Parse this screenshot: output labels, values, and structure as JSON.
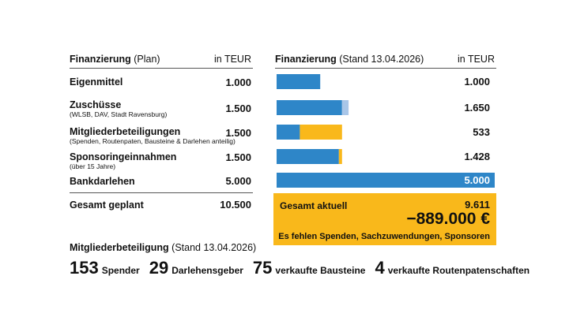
{
  "plan": {
    "title_bold": "Finanzierung",
    "title_rest": " (Plan)",
    "unit": "in TEUR",
    "rows": [
      {
        "label": "Eigenmittel",
        "sub": "",
        "value": "1.000"
      },
      {
        "label": "Zuschüsse",
        "sub": "(WLSB, DAV, Stadt Ravensburg)",
        "value": "1.500"
      },
      {
        "label": "Mitgliederbeteiligungen",
        "sub": "(Spenden, Routenpaten, Bausteine & Darlehen anteilig)",
        "value": "1.500"
      },
      {
        "label": "Sponsoringeinnahmen",
        "sub": "(über 15 Jahre)",
        "value": "1.500"
      },
      {
        "label": "Bankdarlehen",
        "sub": "",
        "value": "5.000"
      }
    ],
    "total_label": "Gesamt geplant",
    "total_value": "10.500"
  },
  "current": {
    "title_bold": "Finanzierung",
    "title_rest": " (Stand 13.04.2026)",
    "unit": "in TEUR",
    "total_label": "Gesamt aktuell",
    "total_value": "9.611",
    "gap_value": "−889.000 €",
    "gap_note": "Es fehlen Spenden, Sachzuwendungen, Sponsoren"
  },
  "chart_data": {
    "type": "bar",
    "orientation": "horizontal",
    "stacked": true,
    "categories": [
      "Eigenmittel",
      "Zuschüsse",
      "Mitgliederbeteiligungen",
      "Sponsoringeinnahmen",
      "Bankdarlehen"
    ],
    "xlim": [
      0,
      5000
    ],
    "series": [
      {
        "values": [
          1000,
          1500,
          533,
          1428,
          5000
        ],
        "color": "#2e86c8"
      },
      {
        "values": [
          0,
          150,
          0,
          0,
          0
        ],
        "color": "#a9c6e8"
      },
      {
        "values": [
          0,
          0,
          967,
          72,
          0
        ],
        "color": "#f9b81b"
      }
    ],
    "value_labels": [
      "1.000",
      "1.650",
      "533",
      "1.428",
      "5.000"
    ],
    "value_label_colors": [
      "#111111",
      "#111111",
      "#111111",
      "#111111",
      "#ffffff"
    ]
  },
  "members": {
    "title_bold": "Mitgliederbeteiligung",
    "title_rest": " (Stand 13.04.2026)",
    "stats": [
      {
        "number": "153",
        "label": "Spender"
      },
      {
        "number": "29",
        "label": "Darlehensgeber"
      },
      {
        "number": "75",
        "label": "verkaufte Bausteine"
      },
      {
        "number": "4",
        "label": "verkaufte Routenpatenschaften"
      }
    ]
  }
}
